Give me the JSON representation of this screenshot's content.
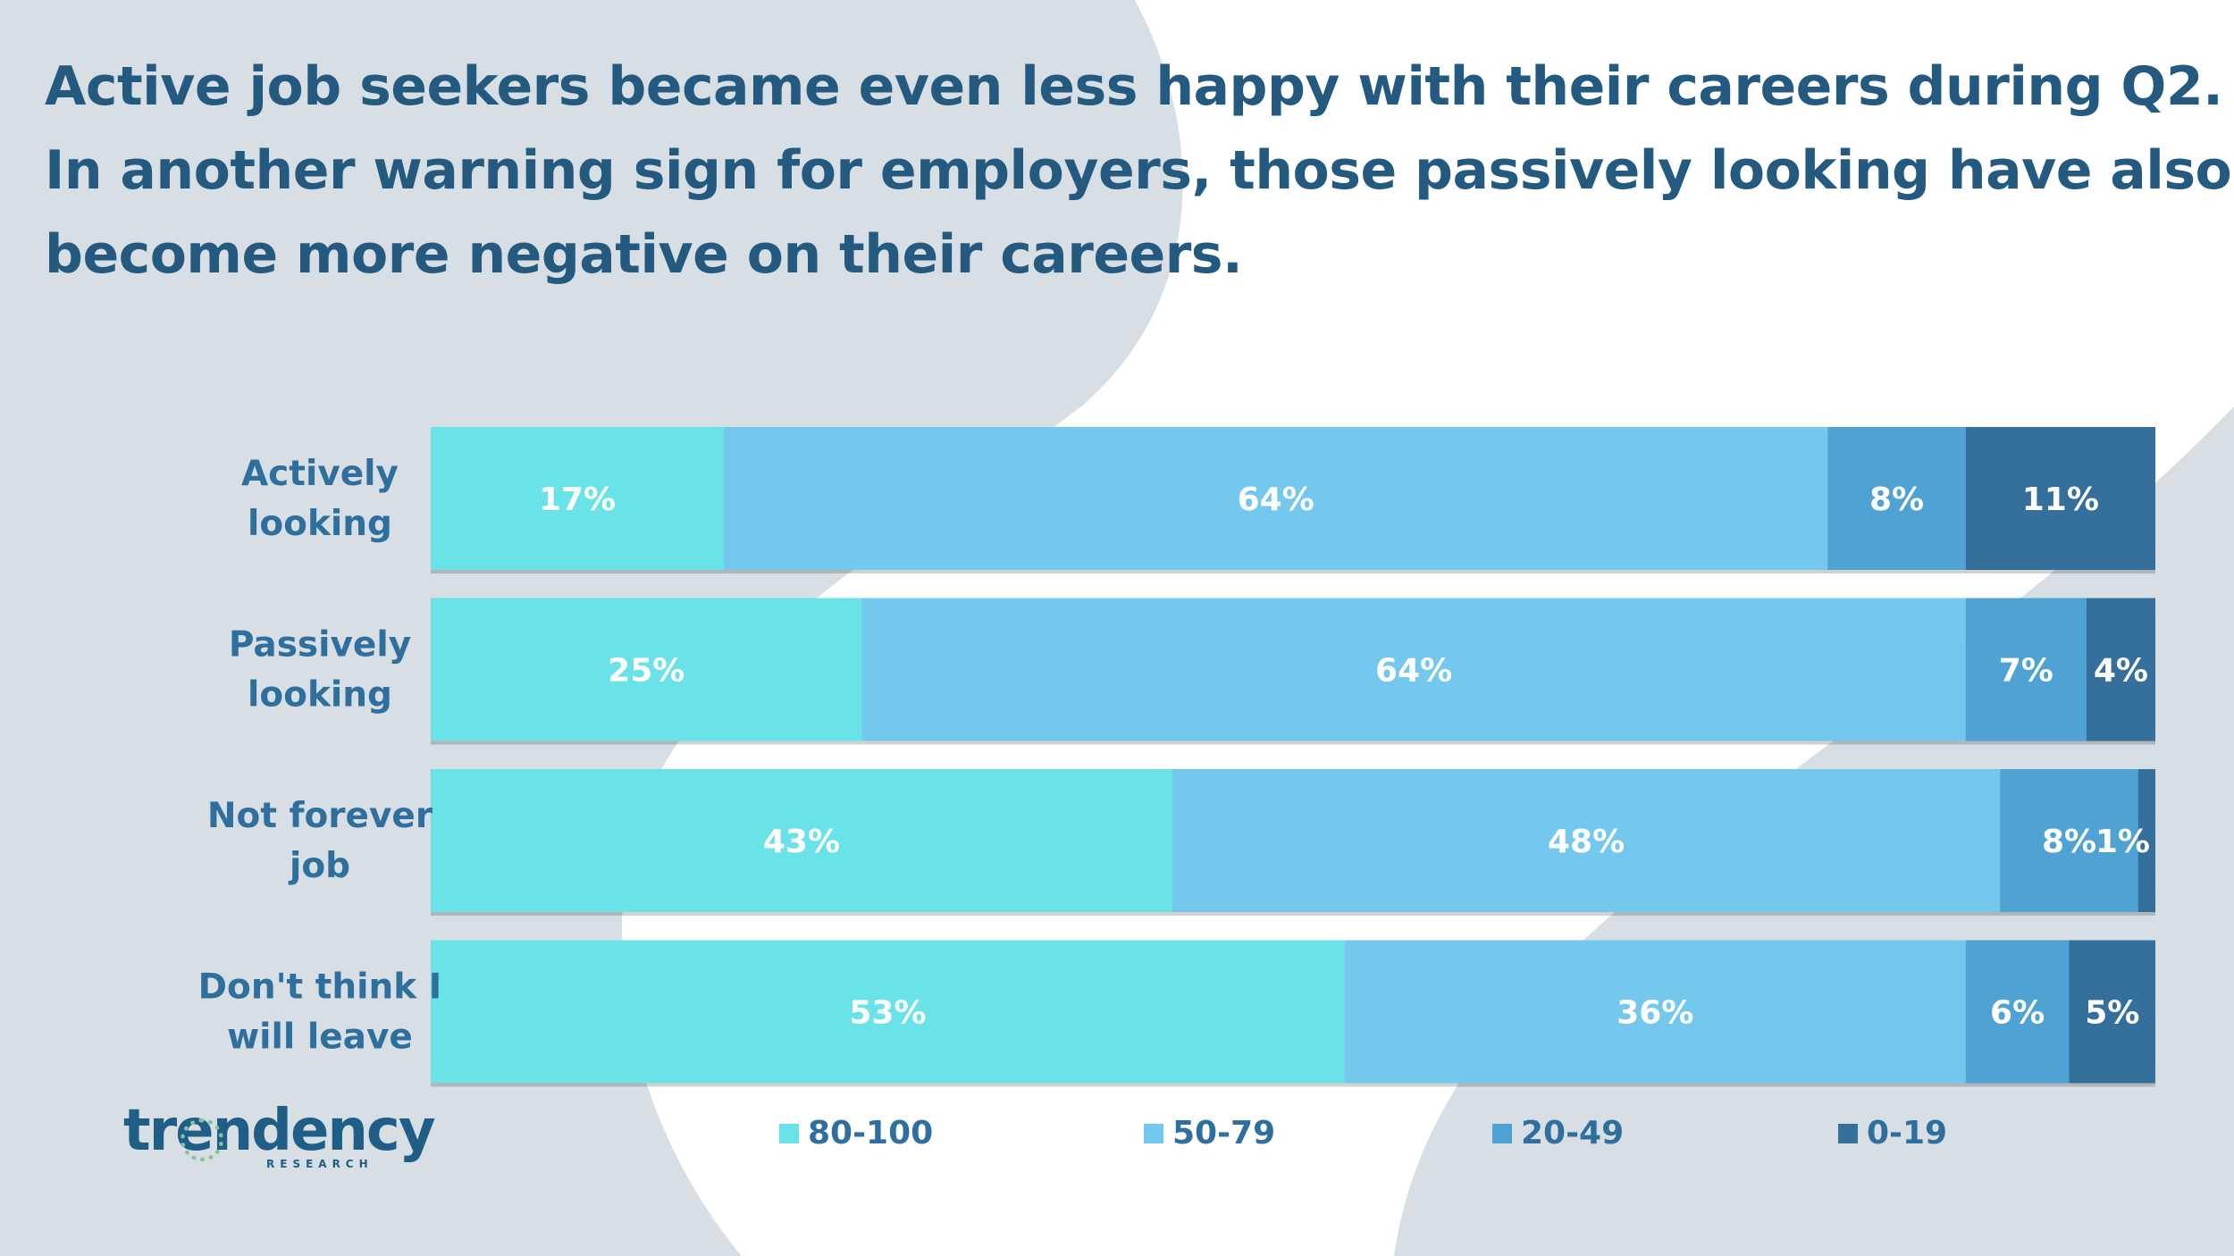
{
  "headline": [
    "Active job seekers became even less happy with their careers during Q2.",
    "In another warning sign for employers, those passively looking have also",
    "become more negative on their careers."
  ],
  "logo": {
    "word": "trendency",
    "sub": "RESEARCH"
  },
  "colors": {
    "headline": "#245a80",
    "label": "#2e6f9e",
    "bg_gray": "#d8dfe4",
    "series": [
      "#6ae3e8",
      "#74c8ed",
      "#4fa2d4",
      "#356f9c"
    ]
  },
  "chart_data": {
    "type": "bar",
    "orientation": "horizontal",
    "stacked": true,
    "categories": [
      [
        "Actively",
        "looking"
      ],
      [
        "Passively",
        "looking"
      ],
      [
        "Not forever",
        "job"
      ],
      [
        "Don't think I",
        "will leave"
      ]
    ],
    "series": [
      {
        "name": "80-100",
        "values": [
          17,
          25,
          43,
          53
        ],
        "labels": [
          "17%",
          "25%",
          "43%",
          "53%"
        ]
      },
      {
        "name": "50-79",
        "values": [
          64,
          64,
          48,
          36
        ],
        "labels": [
          "64%",
          "64%",
          "48%",
          "36%"
        ]
      },
      {
        "name": "20-49",
        "values": [
          8,
          7,
          8,
          6
        ],
        "labels": [
          "8%",
          "7%",
          "8%",
          "6%"
        ]
      },
      {
        "name": "0-19",
        "values": [
          11,
          4,
          1,
          5
        ],
        "labels": [
          "11%",
          "4%",
          "1%",
          "5%"
        ]
      }
    ],
    "xlim": [
      0,
      100
    ],
    "legend": "bottom",
    "grid": false
  }
}
